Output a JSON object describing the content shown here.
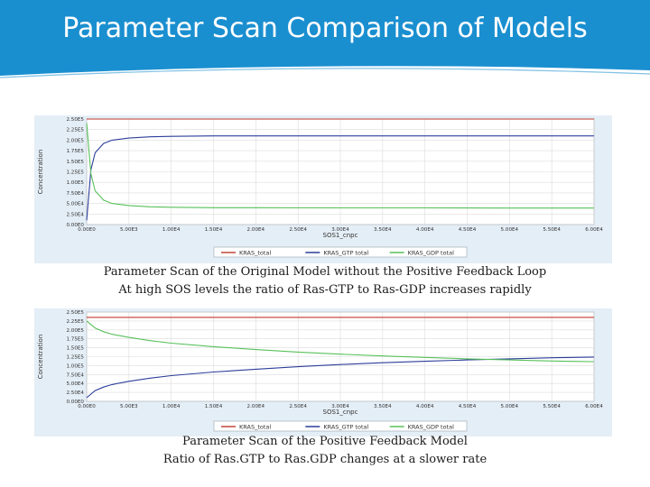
{
  "slide": {
    "title": "Parameter Scan Comparison of Models",
    "captions": [
      [
        "Parameter Scan of the Original Model without the Positive Feedback Loop",
        "At high SOS levels the ratio of Ras-GTP to Ras-GDP increases rapidly"
      ],
      [
        "Parameter Scan of the Positive Feedback Model",
        "Ratio of Ras.GTP to Ras.GDP changes at a slower rate"
      ]
    ]
  },
  "colors": {
    "banner": "#1a8fd0",
    "kras_total": "#c0392b",
    "kras_gtp": "#2c3e9a",
    "kras_gdp": "#58c05a"
  },
  "chart_data": [
    {
      "type": "line",
      "xlabel": "SOS1_cnpc",
      "ylabel": "Concentration",
      "xlim": [
        0,
        60000
      ],
      "ylim": [
        0,
        250000
      ],
      "xticks": [
        "0.00E0",
        "5.00E3",
        "1.00E4",
        "1.50E4",
        "2.00E4",
        "2.50E4",
        "3.00E4",
        "3.50E4",
        "4.00E4",
        "4.50E4",
        "5.00E4",
        "5.50E4",
        "6.00E4"
      ],
      "yticks": [
        "0.00E0",
        "2.50E4",
        "5.00E4",
        "7.50E4",
        "1.00E5",
        "1.25E5",
        "1.50E5",
        "1.75E5",
        "2.00E5",
        "2.25E5",
        "2.50E5"
      ],
      "legend_position": "bottom",
      "grid": true,
      "x": [
        0,
        500,
        1000,
        2000,
        3000,
        5000,
        7500,
        10000,
        15000,
        20000,
        30000,
        40000,
        50000,
        60000
      ],
      "series": [
        {
          "name": "KRAS_total",
          "values": [
            250000,
            250000,
            250000,
            250000,
            250000,
            250000,
            250000,
            250000,
            250000,
            250000,
            250000,
            250000,
            250000,
            250000
          ]
        },
        {
          "name": "KRAS_GTP total",
          "values": [
            10000,
            130000,
            170000,
            192000,
            200000,
            205000,
            208000,
            209000,
            210000,
            210000,
            210000,
            210000,
            210000,
            210000
          ]
        },
        {
          "name": "KRAS_GDP total",
          "values": [
            240000,
            120000,
            80000,
            58000,
            50000,
            45000,
            42000,
            41000,
            40000,
            40000,
            39500,
            39500,
            39000,
            39000
          ]
        }
      ]
    },
    {
      "type": "line",
      "xlabel": "SOS1_cnpc",
      "ylabel": "Concentration",
      "xlim": [
        0,
        60000
      ],
      "ylim": [
        0,
        250000
      ],
      "xticks": [
        "0.00E0",
        "5.00E3",
        "1.00E4",
        "1.50E4",
        "2.00E4",
        "2.50E4",
        "3.00E4",
        "3.50E4",
        "4.00E4",
        "4.50E4",
        "5.00E4",
        "5.50E4",
        "6.00E4"
      ],
      "yticks": [
        "0.00E0",
        "2.50E4",
        "5.00E4",
        "7.50E4",
        "1.00E5",
        "1.25E5",
        "1.50E5",
        "1.75E5",
        "2.00E5",
        "2.25E5",
        "2.50E5"
      ],
      "legend_position": "bottom",
      "grid": true,
      "x": [
        0,
        1000,
        2000,
        3000,
        5000,
        7500,
        10000,
        15000,
        20000,
        25000,
        30000,
        35000,
        40000,
        45000,
        50000,
        55000,
        60000
      ],
      "series": [
        {
          "name": "KRAS_total",
          "values": [
            235000,
            235000,
            235000,
            235000,
            235000,
            235000,
            235000,
            235000,
            235000,
            235000,
            235000,
            235000,
            235000,
            235000,
            235000,
            235000,
            235000
          ]
        },
        {
          "name": "KRAS_GTP total",
          "values": [
            10000,
            30000,
            40000,
            47000,
            56000,
            65000,
            72000,
            82000,
            90000,
            97000,
            103000,
            108000,
            112000,
            116000,
            119000,
            122000,
            124000
          ]
        },
        {
          "name": "KRAS_GDP total",
          "values": [
            225000,
            205000,
            195000,
            188000,
            179000,
            170000,
            163000,
            153000,
            145000,
            138000,
            132000,
            127000,
            123000,
            119000,
            116000,
            113000,
            111000
          ]
        }
      ]
    }
  ]
}
